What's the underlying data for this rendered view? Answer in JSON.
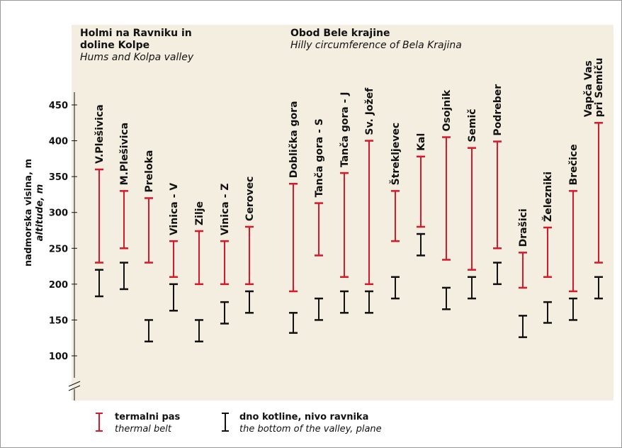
{
  "chart_data": {
    "type": "range",
    "groups": [
      {
        "title": [
          "Holmi na Ravniku in",
          "doline Kolpe"
        ],
        "subtitle": "Hums and Kolpa valley"
      },
      {
        "title": [
          "Obod Bele krajine"
        ],
        "subtitle": "Hilly circumference of Bela Krajina"
      }
    ],
    "ylabel": [
      "nadmorska visina, m",
      "altitude, m"
    ],
    "categories": [
      "V.Plešivica",
      "M.Plešivica",
      "Preloka",
      "Vinica - V",
      "Zilje",
      "Vinica - Z",
      "Cerovec",
      "Doblička gora",
      "Tanča gora - S",
      "Tanča gora - J",
      "Sv. Jožef",
      "Štrekljevec",
      "Kal",
      "Osojnik",
      "Semič",
      "Podreber",
      "Drašici",
      "Železniki",
      "Brečice",
      [
        "Vapča Vas",
        "pri Semiču"
      ]
    ],
    "series": [
      {
        "name": "termalni pas",
        "name_en": "thermal belt",
        "color": "#d7182a",
        "values": [
          [
            230,
            360
          ],
          [
            250,
            330
          ],
          [
            230,
            320
          ],
          [
            210,
            260
          ],
          [
            200,
            274
          ],
          [
            200,
            260
          ],
          [
            200,
            280
          ],
          [
            190,
            340
          ],
          [
            240,
            313
          ],
          [
            210,
            355
          ],
          [
            200,
            400
          ],
          [
            260,
            330
          ],
          [
            280,
            378
          ],
          [
            234,
            405
          ],
          [
            220,
            390
          ],
          [
            250,
            399
          ],
          [
            195,
            244
          ],
          [
            210,
            279
          ],
          [
            190,
            330
          ],
          [
            230,
            425
          ]
        ]
      },
      {
        "name": "dno kotline, nivo ravnika",
        "name_en": "the bottom of the valley, plane",
        "color": "#111111",
        "values": [
          [
            183,
            220
          ],
          [
            193,
            230
          ],
          [
            120,
            150
          ],
          [
            163,
            200
          ],
          [
            120,
            150
          ],
          [
            145,
            175
          ],
          [
            160,
            190
          ],
          [
            132,
            160
          ],
          [
            150,
            180
          ],
          [
            160,
            190
          ],
          [
            160,
            190
          ],
          [
            180,
            210
          ],
          [
            240,
            270
          ],
          [
            165,
            195
          ],
          [
            180,
            210
          ],
          [
            200,
            230
          ],
          [
            126,
            156
          ],
          [
            146,
            175
          ],
          [
            150,
            180
          ],
          [
            180,
            210
          ]
        ]
      }
    ],
    "ylim": [
      75,
      450
    ],
    "yticks": [
      100,
      150,
      200,
      250,
      300,
      350,
      400,
      450
    ]
  }
}
